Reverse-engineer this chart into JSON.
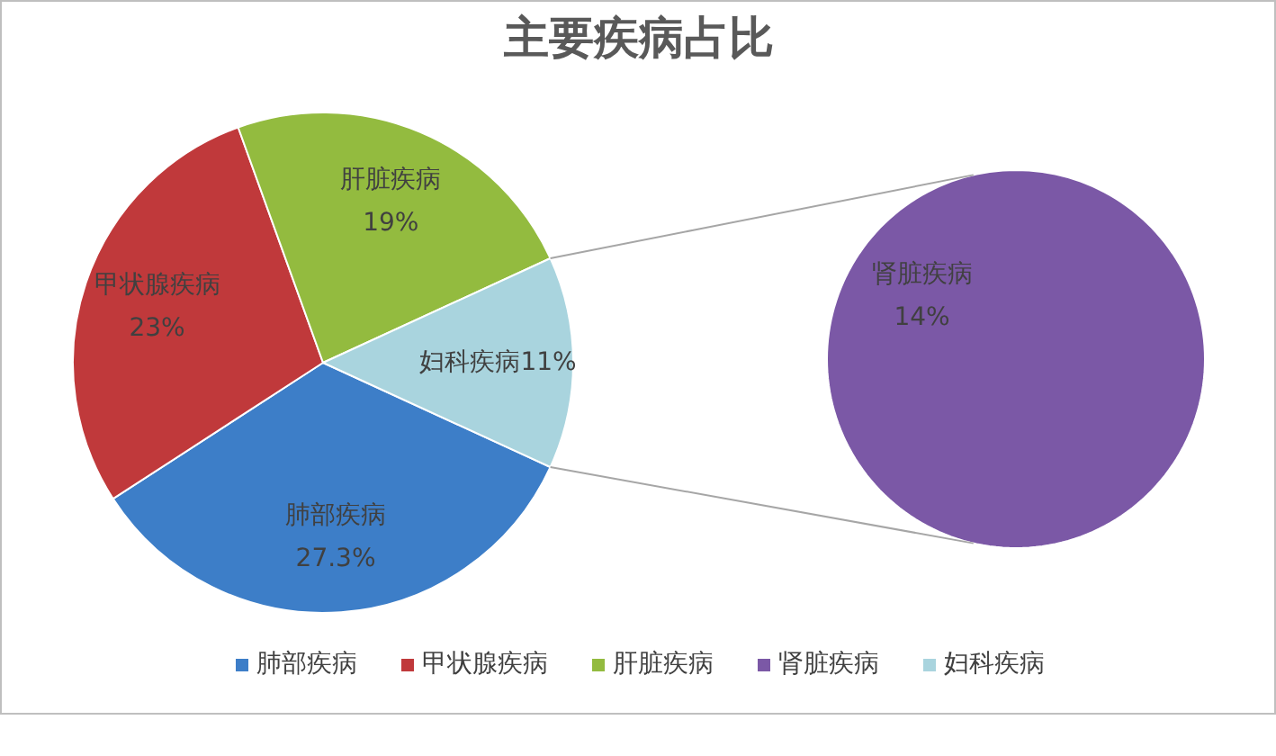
{
  "chart_data": [
    {
      "type": "pie",
      "title": "主要疾病占比",
      "categories": [
        "肺部疾病",
        "甲状腺疾病",
        "肝脏疾病",
        "妇科疾病"
      ],
      "values": [
        27.3,
        23,
        19,
        11
      ],
      "value_labels": [
        "27.3%",
        "23%",
        "19%",
        "11%"
      ],
      "colors": [
        "#3d7ec8",
        "#c0393b",
        "#93bb3f",
        "#a9d4de"
      ],
      "legend": "bottom"
    },
    {
      "type": "pie",
      "categories": [
        "肾脏疾病"
      ],
      "values": [
        14
      ],
      "value_labels": [
        "14%"
      ],
      "colors": [
        "#7b58a6"
      ],
      "legend": "bottom"
    }
  ]
}
